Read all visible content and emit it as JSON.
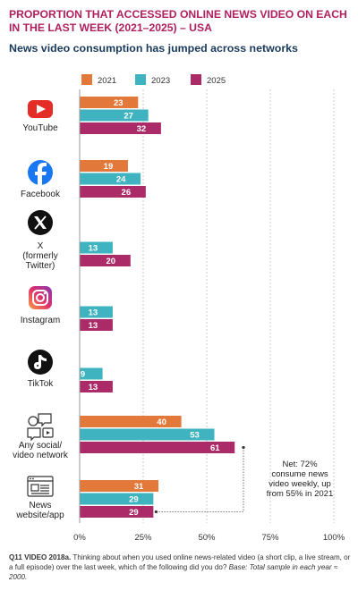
{
  "title": "PROPORTION THAT ACCESSED ONLINE NEWS VIDEO ON EACH IN THE LAST WEEK (2021–2025) – USA",
  "subtitle": "News video consumption has jumped across networks",
  "footnote": {
    "bold": "Q11 VIDEO 2018a.",
    "text": " Thinking about when you used online news-related video (a short clip, a live stream, or a full episode) over the last week, which of the following did you do? ",
    "italic": "Base: Total sample in each year ≈ 2000."
  },
  "colors": {
    "2021": "#e2783a",
    "2023": "#3fb3c0",
    "2025": "#ab2b68",
    "title": "#b02060",
    "grid": "#c8c8c8"
  },
  "annotation": {
    "lines": [
      "Net: 72%",
      "consume news",
      "video weekly, up",
      "from 55% in 2021"
    ]
  },
  "chart_data": {
    "type": "bar",
    "orientation": "horizontal",
    "title": "PROPORTION THAT ACCESSED ONLINE NEWS VIDEO ON EACH IN THE LAST WEEK (2021–2025) – USA",
    "subtitle": "News video consumption has jumped across networks",
    "categories": [
      {
        "label": [
          "YouTube"
        ],
        "icon": "youtube-icon"
      },
      {
        "label": [
          "Facebook"
        ],
        "icon": "facebook-icon"
      },
      {
        "label": [
          "X",
          "(formerly",
          "Twitter)"
        ],
        "icon": "x-icon"
      },
      {
        "label": [
          "Instagram"
        ],
        "icon": "instagram-icon"
      },
      {
        "label": [
          "TikTok"
        ],
        "icon": "tiktok-icon"
      },
      {
        "label": [
          "Any social/",
          "video network"
        ],
        "icon": "social-network-icon"
      },
      {
        "label": [
          "News",
          "website/app"
        ],
        "icon": "news-website-icon"
      }
    ],
    "series": [
      {
        "name": "2021",
        "values": [
          23,
          19,
          null,
          null,
          null,
          40,
          31
        ]
      },
      {
        "name": "2023",
        "values": [
          27,
          24,
          13,
          13,
          9,
          53,
          29
        ]
      },
      {
        "name": "2025",
        "values": [
          32,
          26,
          20,
          13,
          13,
          61,
          29
        ]
      }
    ],
    "xlim": [
      0,
      100
    ],
    "xticks": [
      "0%",
      "25%",
      "50%",
      "75%",
      "100%"
    ],
    "grid": true,
    "legend": "top"
  }
}
